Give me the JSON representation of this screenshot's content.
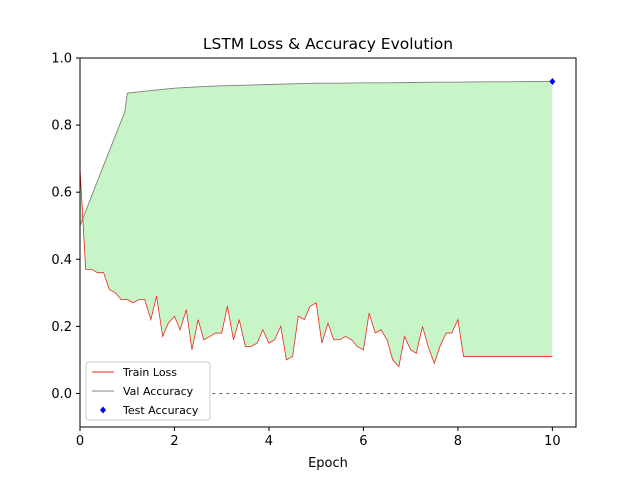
{
  "chart_data": {
    "type": "line",
    "title": "LSTM Loss & Accuracy Evolution",
    "xlabel": "Epoch",
    "ylabel": "",
    "xlim": [
      0,
      10.5
    ],
    "ylim": [
      -0.1,
      1.0
    ],
    "x_ticks": [
      0,
      2,
      4,
      6,
      8,
      10
    ],
    "y_ticks": [
      0.0,
      0.2,
      0.4,
      0.6,
      0.8,
      1.0
    ],
    "x_tick_labels": [
      "0",
      "2",
      "4",
      "6",
      "8",
      "10"
    ],
    "y_tick_labels": [
      "0.0",
      "0.2",
      "0.4",
      "0.6",
      "0.8",
      "1.0"
    ],
    "grid": false,
    "legend_position": "lower-left",
    "fill_between": {
      "upper": "Val Accuracy",
      "lower": "Train Loss",
      "color": "#c8f5c8"
    },
    "reference_line": {
      "y": 0.0,
      "style": "dashed",
      "color": "#555555"
    },
    "series": [
      {
        "name": "Train Loss",
        "color": "#e8281e",
        "x": [
          0,
          0.12,
          0.25,
          0.37,
          0.5,
          0.62,
          0.75,
          0.87,
          0.95,
          1.0,
          1.12,
          1.25,
          1.37,
          1.5,
          1.62,
          1.75,
          1.87,
          2.0,
          2.12,
          2.25,
          2.37,
          2.5,
          2.62,
          2.75,
          2.87,
          3.0,
          3.12,
          3.25,
          3.37,
          3.5,
          3.62,
          3.75,
          3.87,
          4.0,
          4.12,
          4.25,
          4.37,
          4.5,
          4.62,
          4.75,
          4.87,
          5.0,
          5.12,
          5.25,
          5.37,
          5.5,
          5.62,
          5.75,
          5.87,
          6.0,
          6.12,
          6.25,
          6.37,
          6.5,
          6.62,
          6.75,
          6.87,
          7.0,
          7.12,
          7.25,
          7.37,
          7.5,
          7.62,
          7.75,
          7.87,
          8.0,
          8.12,
          8.25,
          8.37,
          8.5,
          8.62,
          8.75,
          8.87,
          9.0,
          9.12,
          9.25,
          9.37,
          9.5,
          9.62,
          9.75,
          9.87,
          10.0
        ],
        "y": [
          0.67,
          0.37,
          0.37,
          0.36,
          0.36,
          0.31,
          0.3,
          0.28,
          0.28,
          0.28,
          0.27,
          0.28,
          0.28,
          0.22,
          0.29,
          0.17,
          0.21,
          0.23,
          0.19,
          0.25,
          0.13,
          0.22,
          0.16,
          0.17,
          0.18,
          0.18,
          0.26,
          0.16,
          0.22,
          0.14,
          0.14,
          0.15,
          0.19,
          0.15,
          0.16,
          0.2,
          0.1,
          0.11,
          0.23,
          0.22,
          0.26,
          0.27,
          0.15,
          0.21,
          0.16,
          0.16,
          0.17,
          0.16,
          0.14,
          0.13,
          0.24,
          0.18,
          0.19,
          0.16,
          0.1,
          0.08,
          0.17,
          0.13,
          0.12,
          0.2,
          0.14,
          0.09,
          0.14,
          0.18,
          0.18,
          0.22,
          0.11,
          0.11,
          0.11,
          0.11,
          0.11,
          0.11,
          0.11,
          0.11,
          0.11,
          0.11,
          0.11,
          0.11,
          0.11,
          0.11,
          0.11,
          0.11
        ]
      },
      {
        "name": "Val Accuracy",
        "color": "#808080",
        "x": [
          0,
          0.5,
          0.95,
          1.0,
          1.5,
          2.0,
          2.5,
          3.0,
          3.5,
          4.0,
          4.5,
          5.0,
          5.5,
          6.0,
          6.5,
          7.0,
          7.5,
          8.0,
          8.5,
          9.0,
          9.5,
          10.0
        ],
        "y": [
          0.5,
          0.68,
          0.84,
          0.895,
          0.903,
          0.91,
          0.914,
          0.917,
          0.919,
          0.921,
          0.923,
          0.925,
          0.925,
          0.926,
          0.926,
          0.927,
          0.928,
          0.928,
          0.929,
          0.929,
          0.93,
          0.93
        ]
      },
      {
        "name": "Test Accuracy",
        "color": "#0000ee",
        "marker": "diamond",
        "x": [
          10.0
        ],
        "y": [
          0.93
        ]
      }
    ]
  }
}
